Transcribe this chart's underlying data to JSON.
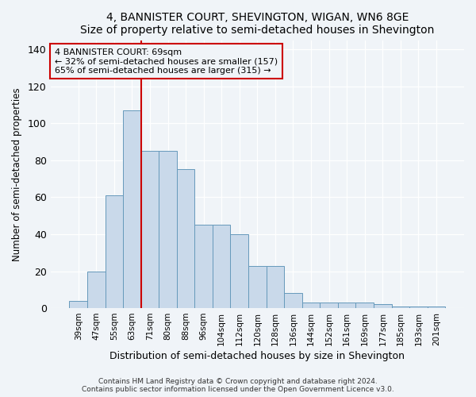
{
  "title": "4, BANNISTER COURT, SHEVINGTON, WIGAN, WN6 8GE",
  "subtitle": "Size of property relative to semi-detached houses in Shevington",
  "xlabel": "Distribution of semi-detached houses by size in Shevington",
  "ylabel": "Number of semi-detached properties",
  "bar_labels": [
    "39sqm",
    "47sqm",
    "55sqm",
    "63sqm",
    "71sqm",
    "80sqm",
    "88sqm",
    "96sqm",
    "104sqm",
    "112sqm",
    "120sqm",
    "128sqm",
    "136sqm",
    "144sqm",
    "152sqm",
    "161sqm",
    "169sqm",
    "177sqm",
    "185sqm",
    "193sqm",
    "201sqm"
  ],
  "bar_heights": [
    4,
    20,
    61,
    107,
    85,
    85,
    75,
    45,
    45,
    40,
    23,
    23,
    8,
    3,
    3,
    3,
    3,
    2,
    1,
    1,
    1
  ],
  "property_bin_index": 3,
  "annotation_text": "4 BANNISTER COURT: 69sqm\n← 32% of semi-detached houses are smaller (157)\n65% of semi-detached houses are larger (315) →",
  "bar_color": "#c9d9ea",
  "bar_edgecolor": "#6699bb",
  "vline_color": "#cc0000",
  "annotation_box_edgecolor": "#cc0000",
  "background_color": "#f0f4f8",
  "footer": "Contains HM Land Registry data © Crown copyright and database right 2024.\nContains public sector information licensed under the Open Government Licence v3.0.",
  "ylim": [
    0,
    145
  ],
  "yticks": [
    0,
    20,
    40,
    60,
    80,
    100,
    120,
    140
  ],
  "figsize": [
    6.0,
    5.0
  ],
  "dpi": 100
}
